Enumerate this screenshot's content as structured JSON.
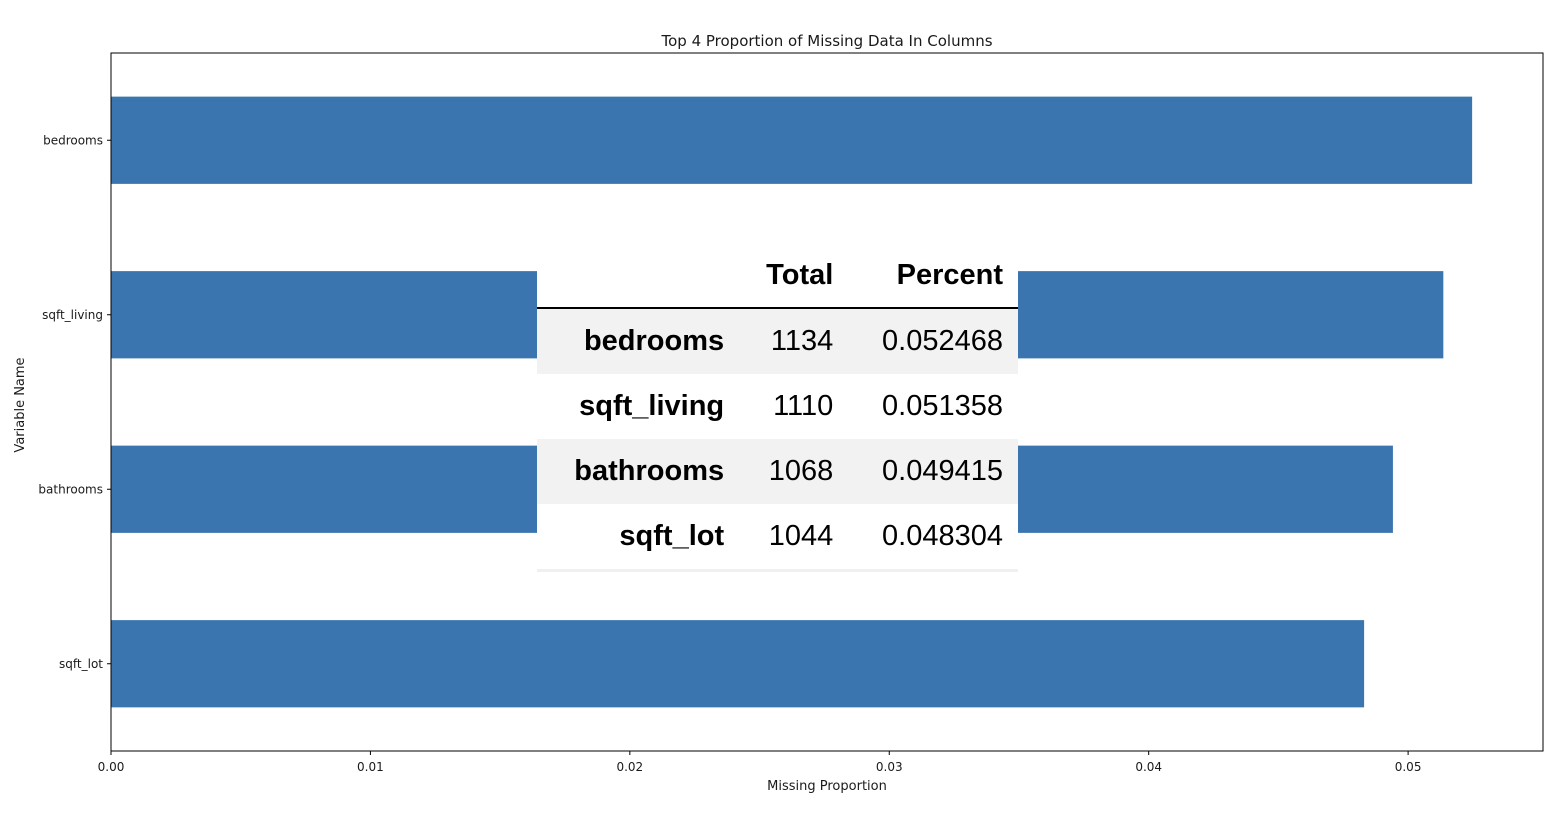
{
  "chart_data": {
    "type": "bar",
    "orientation": "horizontal",
    "title": "Top 4 Proportion of Missing Data In Columns",
    "xlabel": "Missing Proportion",
    "ylabel": "Variable Name",
    "categories": [
      "bedrooms",
      "sqft_living",
      "bathrooms",
      "sqft_lot"
    ],
    "values": [
      0.052468,
      0.051358,
      0.049415,
      0.048304
    ],
    "xlim": [
      0.0,
      0.0552
    ],
    "xticks": [
      0.0,
      0.01,
      0.02,
      0.03,
      0.04,
      0.05
    ],
    "xtick_labels": [
      "0.00",
      "0.01",
      "0.02",
      "0.03",
      "0.04",
      "0.05"
    ],
    "bar_color": "#3b75af",
    "grid": false
  },
  "table": {
    "headers": [
      "",
      "Total",
      "Percent"
    ],
    "rows": [
      {
        "name": "bedrooms",
        "total": "1134",
        "percent": "0.052468"
      },
      {
        "name": "sqft_living",
        "total": "1110",
        "percent": "0.051358"
      },
      {
        "name": "bathrooms",
        "total": "1068",
        "percent": "0.049415"
      },
      {
        "name": "sqft_lot",
        "total": "1044",
        "percent": "0.048304"
      }
    ]
  }
}
